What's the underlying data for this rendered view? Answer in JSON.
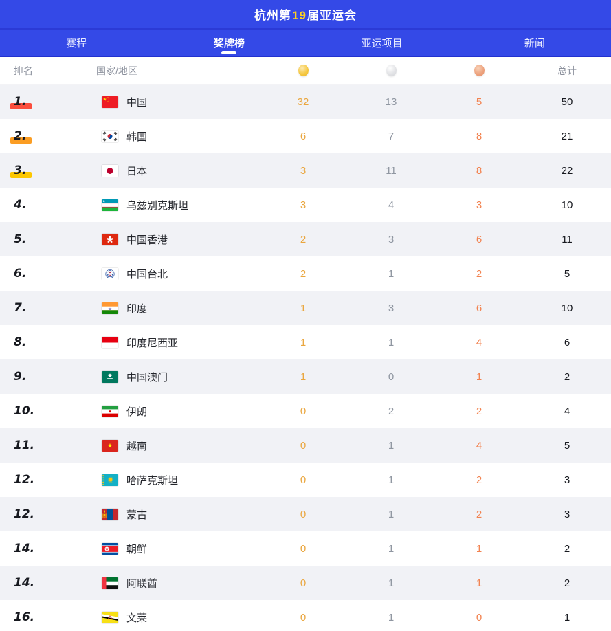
{
  "colors": {
    "brand_blue": "#3449e7",
    "brand_blue_dark": "#2231cf",
    "brand_blue_line": "#2b3ad6",
    "accent_yellow": "#ffd21e",
    "row_alt_bg": "#f1f2f6",
    "gold": "#eaa63e",
    "silver": "#8f96a1",
    "bronze": "#f2824f"
  },
  "header": {
    "title_prefix": "杭州第",
    "title_number": "19",
    "title_suffix": "届亚运会"
  },
  "tabs": [
    {
      "name": "schedule",
      "label": "赛程",
      "active": false
    },
    {
      "name": "medals",
      "label": "奖牌榜",
      "active": true
    },
    {
      "name": "events",
      "label": "亚运项目",
      "active": false
    },
    {
      "name": "news",
      "label": "新闻",
      "active": false
    }
  ],
  "table": {
    "columns": {
      "rank": "排名",
      "country": "国家/地区",
      "icons": [
        "gold-medal-icon",
        "silver-medal-icon",
        "bronze-medal-icon"
      ],
      "total": "总计"
    },
    "rank_highlight_colors": {
      "1": "#fb4d3d",
      "2": "#fb9d23",
      "3": "#fdc700"
    },
    "rows": [
      {
        "rank": "1.",
        "highlight": "1",
        "flag": "cn",
        "country": "中国",
        "gold": 32,
        "silver": 13,
        "bronze": 5,
        "total": 50
      },
      {
        "rank": "2.",
        "highlight": "2",
        "flag": "kr",
        "country": "韩国",
        "gold": 6,
        "silver": 7,
        "bronze": 8,
        "total": 21
      },
      {
        "rank": "3.",
        "highlight": "3",
        "flag": "jp",
        "country": "日本",
        "gold": 3,
        "silver": 11,
        "bronze": 8,
        "total": 22
      },
      {
        "rank": "4.",
        "highlight": null,
        "flag": "uz",
        "country": "乌兹别克斯坦",
        "gold": 3,
        "silver": 4,
        "bronze": 3,
        "total": 10
      },
      {
        "rank": "5.",
        "highlight": null,
        "flag": "hk",
        "country": "中国香港",
        "gold": 2,
        "silver": 3,
        "bronze": 6,
        "total": 11
      },
      {
        "rank": "6.",
        "highlight": null,
        "flag": "tw",
        "country": "中国台北",
        "gold": 2,
        "silver": 1,
        "bronze": 2,
        "total": 5
      },
      {
        "rank": "7.",
        "highlight": null,
        "flag": "in",
        "country": "印度",
        "gold": 1,
        "silver": 3,
        "bronze": 6,
        "total": 10
      },
      {
        "rank": "8.",
        "highlight": null,
        "flag": "id",
        "country": "印度尼西亚",
        "gold": 1,
        "silver": 1,
        "bronze": 4,
        "total": 6
      },
      {
        "rank": "9.",
        "highlight": null,
        "flag": "mo",
        "country": "中国澳门",
        "gold": 1,
        "silver": 0,
        "bronze": 1,
        "total": 2
      },
      {
        "rank": "10.",
        "highlight": null,
        "flag": "ir",
        "country": "伊朗",
        "gold": 0,
        "silver": 2,
        "bronze": 2,
        "total": 4
      },
      {
        "rank": "11.",
        "highlight": null,
        "flag": "vn",
        "country": "越南",
        "gold": 0,
        "silver": 1,
        "bronze": 4,
        "total": 5
      },
      {
        "rank": "12.",
        "highlight": null,
        "flag": "kz",
        "country": "哈萨克斯坦",
        "gold": 0,
        "silver": 1,
        "bronze": 2,
        "total": 3
      },
      {
        "rank": "12.",
        "highlight": null,
        "flag": "mn",
        "country": "蒙古",
        "gold": 0,
        "silver": 1,
        "bronze": 2,
        "total": 3
      },
      {
        "rank": "14.",
        "highlight": null,
        "flag": "kp",
        "country": "朝鲜",
        "gold": 0,
        "silver": 1,
        "bronze": 1,
        "total": 2
      },
      {
        "rank": "14.",
        "highlight": null,
        "flag": "ae",
        "country": "阿联酋",
        "gold": 0,
        "silver": 1,
        "bronze": 1,
        "total": 2
      },
      {
        "rank": "16.",
        "highlight": null,
        "flag": "bn",
        "country": "文莱",
        "gold": 0,
        "silver": 1,
        "bronze": 0,
        "total": 1
      }
    ]
  }
}
